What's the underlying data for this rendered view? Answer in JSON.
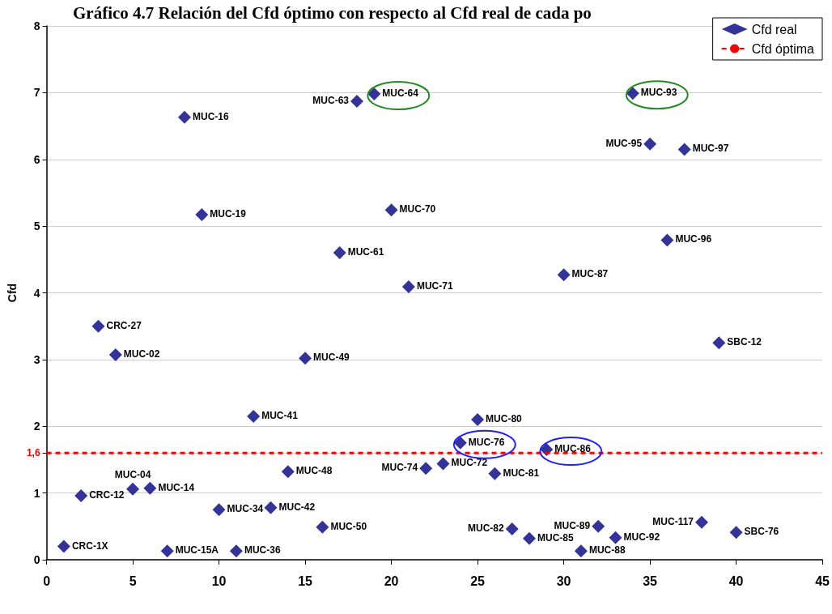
{
  "chart_data": {
    "type": "scatter",
    "title": "Gráfico 4.7 Relación del Cfd óptimo con respecto al Cfd real de cada po",
    "ylabel": "Cfd",
    "x": [
      1,
      2,
      3,
      4,
      5,
      6,
      7,
      8,
      9,
      10,
      11,
      12,
      13,
      14,
      15,
      16,
      17,
      18,
      19,
      20,
      21,
      22,
      23,
      24,
      25,
      26,
      27,
      28,
      29,
      30,
      31,
      32,
      33,
      34,
      35,
      36,
      37,
      38,
      39,
      40
    ],
    "series": [
      {
        "name": "Cfd real",
        "color": "#000080",
        "values": [
          0.2,
          0.96,
          3.5,
          3.07,
          1.06,
          1.07,
          0.13,
          6.63,
          5.17,
          0.75,
          0.13,
          2.15,
          0.78,
          1.32,
          3.02,
          0.49,
          4.6,
          6.87,
          6.98,
          5.24,
          4.09,
          1.37,
          1.44,
          1.75,
          2.1,
          1.29,
          0.46,
          0.32,
          1.65,
          4.27,
          0.13,
          0.5,
          0.33,
          6.99,
          6.23,
          4.79,
          6.15,
          0.56,
          3.25,
          0.41
        ]
      }
    ],
    "marker": "diamond",
    "xlim": [
      0,
      45
    ],
    "xticks": [
      0,
      5,
      10,
      15,
      20,
      25,
      30,
      35,
      40,
      45
    ],
    "ylim": [
      0,
      8
    ],
    "yticks": [
      0,
      1,
      {
        "value": 1.6,
        "label": "1,6"
      },
      2,
      3,
      4,
      5,
      6,
      7,
      8
    ],
    "grid": "y",
    "legend": "top right",
    "ref_lines": [
      {
        "axis": "y",
        "value": 1.6,
        "label": "Cfd óptima",
        "color": "#ff0000",
        "line_style": "dashed"
      }
    ],
    "annotations": [
      {
        "text": "CRC-1X",
        "x": 1,
        "y": 0.2
      },
      {
        "text": "CRC-12",
        "x": 2,
        "y": 0.96
      },
      {
        "text": "CRC-27",
        "x": 3,
        "y": 3.5
      },
      {
        "text": "MUC-02",
        "x": 4,
        "y": 3.07
      },
      {
        "text": "MUC-04",
        "x": 5,
        "y": 1.06
      },
      {
        "text": "MUC-14",
        "x": 6,
        "y": 1.07
      },
      {
        "text": "MUC-15A",
        "x": 7,
        "y": 0.13
      },
      {
        "text": "MUC-16",
        "x": 8,
        "y": 6.63
      },
      {
        "text": "MUC-19",
        "x": 9,
        "y": 5.17
      },
      {
        "text": "MUC-34",
        "x": 10,
        "y": 0.75
      },
      {
        "text": "MUC-36",
        "x": 11,
        "y": 0.13
      },
      {
        "text": "MUC-41",
        "x": 12,
        "y": 2.15
      },
      {
        "text": "MUC-42",
        "x": 13,
        "y": 0.78
      },
      {
        "text": "MUC-48",
        "x": 14,
        "y": 1.32
      },
      {
        "text": "MUC-49",
        "x": 15,
        "y": 3.02
      },
      {
        "text": "MUC-50",
        "x": 16,
        "y": 0.49
      },
      {
        "text": "MUC-61",
        "x": 17,
        "y": 4.6
      },
      {
        "text": "MUC-63",
        "x": 18,
        "y": 6.87
      },
      {
        "text": "MUC-64",
        "x": 19,
        "y": 6.98
      },
      {
        "text": "MUC-70",
        "x": 20,
        "y": 5.24
      },
      {
        "text": "MUC-71",
        "x": 21,
        "y": 4.09
      },
      {
        "text": "MUC-74",
        "x": 22,
        "y": 1.37
      },
      {
        "text": "MUC-72",
        "x": 23,
        "y": 1.44
      },
      {
        "text": "MUC-76",
        "x": 24,
        "y": 1.75
      },
      {
        "text": "MUC-80",
        "x": 25,
        "y": 2.1
      },
      {
        "text": "MUC-81",
        "x": 26,
        "y": 1.29
      },
      {
        "text": "MUC-82",
        "x": 27,
        "y": 0.46
      },
      {
        "text": "MUC-85",
        "x": 28,
        "y": 0.32
      },
      {
        "text": "MUC-86",
        "x": 29,
        "y": 1.65
      },
      {
        "text": "MUC-87",
        "x": 30,
        "y": 4.27
      },
      {
        "text": "MUC-88",
        "x": 31,
        "y": 0.13
      },
      {
        "text": "MUC-89",
        "x": 32,
        "y": 0.5
      },
      {
        "text": "MUC-92",
        "x": 33,
        "y": 0.33
      },
      {
        "text": "MUC-93",
        "x": 34,
        "y": 6.99
      },
      {
        "text": "MUC-95",
        "x": 35,
        "y": 6.23
      },
      {
        "text": "MUC-96",
        "x": 36,
        "y": 4.79
      },
      {
        "text": "MUC-97",
        "x": 37,
        "y": 6.15
      },
      {
        "text": "MUC-117",
        "x": 38,
        "y": 0.56
      },
      {
        "text": "SBC-12",
        "x": 39,
        "y": 3.25
      },
      {
        "text": "SBC-76",
        "x": 40,
        "y": 0.41
      }
    ]
  }
}
